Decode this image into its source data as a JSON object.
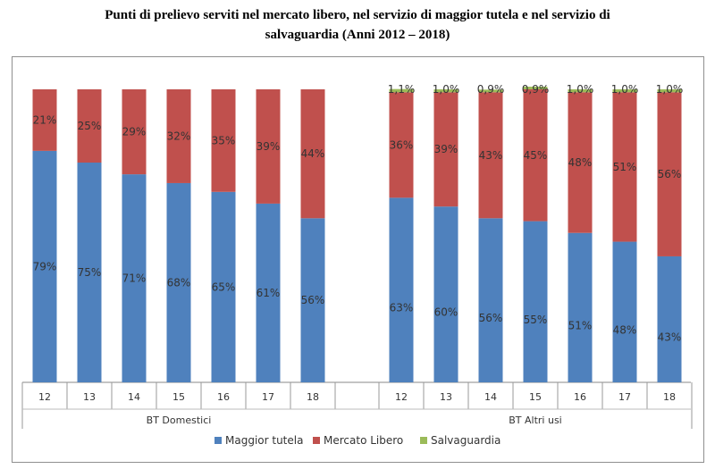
{
  "title": {
    "line1": "Punti di prelievo serviti nel mercato libero, nel servizio di maggior tutela e nel servizio di",
    "line2": "salvaguardia (Anni 2012 – 2018)"
  },
  "colors": {
    "maggior_tutela": "#4f81bd",
    "mercato_libero": "#c0504d",
    "salvaguardia": "#9bbb59"
  },
  "chart_data": {
    "type": "bar",
    "stacked": true,
    "percent": true,
    "groups": [
      {
        "name": "BT Domestici",
        "categories": [
          "12",
          "13",
          "14",
          "15",
          "16",
          "17",
          "18"
        ],
        "series": [
          {
            "name": "Maggior tutela",
            "values": [
              79,
              75,
              71,
              68,
              65,
              61,
              56
            ],
            "labels": [
              "79%",
              "75%",
              "71%",
              "68%",
              "65%",
              "61%",
              "56%"
            ]
          },
          {
            "name": "Mercato Libero",
            "values": [
              21,
              25,
              29,
              32,
              35,
              39,
              44
            ],
            "labels": [
              "21%",
              "25%",
              "29%",
              "32%",
              "35%",
              "39%",
              "44%"
            ]
          },
          {
            "name": "Salvaguardia",
            "values": [
              0,
              0,
              0,
              0,
              0,
              0,
              0
            ],
            "labels": []
          }
        ]
      },
      {
        "name": "BT Altri usi",
        "categories": [
          "12",
          "13",
          "14",
          "15",
          "16",
          "17",
          "18"
        ],
        "series": [
          {
            "name": "Maggior tutela",
            "values": [
              63,
              60,
              56,
              55,
              51,
              48,
              43
            ],
            "labels": [
              "63%",
              "60%",
              "56%",
              "55%",
              "51%",
              "48%",
              "43%"
            ]
          },
          {
            "name": "Mercato Libero",
            "values": [
              36,
              39,
              43,
              45,
              48,
              51,
              56
            ],
            "labels": [
              "36%",
              "39%",
              "43%",
              "45%",
              "48%",
              "51%",
              "56%"
            ]
          },
          {
            "name": "Salvaguardia",
            "values": [
              1.1,
              1.0,
              0.9,
              0.9,
              1.0,
              1.0,
              1.0
            ],
            "labels": [
              "1,1%",
              "1,0%",
              "0,9%",
              "0,9%",
              "1,0%",
              "1,0%",
              "1,0%"
            ]
          }
        ]
      }
    ],
    "legend": [
      "Maggior tutela",
      "Mercato Libero",
      "Salvaguardia"
    ],
    "legend_position": "bottom",
    "grid": false
  }
}
